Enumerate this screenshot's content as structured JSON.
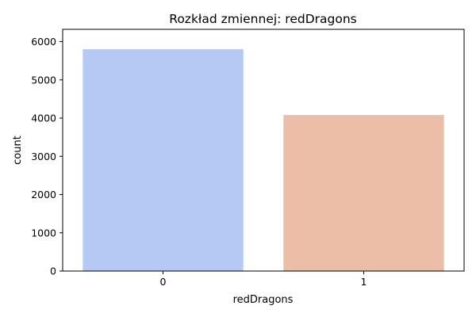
{
  "chart_data": {
    "type": "bar",
    "title": "Rozkład zmiennej: redDragons",
    "xlabel": "redDragons",
    "ylabel": "count",
    "categories": [
      "0",
      "1"
    ],
    "values": [
      5800,
      4080
    ],
    "bar_colors": [
      "#b5c9f4",
      "#ecbda7"
    ],
    "ylim": [
      0,
      6000
    ],
    "yticks": [
      0,
      1000,
      2000,
      3000,
      4000,
      5000,
      6000
    ],
    "grid": false,
    "legend": "none"
  }
}
